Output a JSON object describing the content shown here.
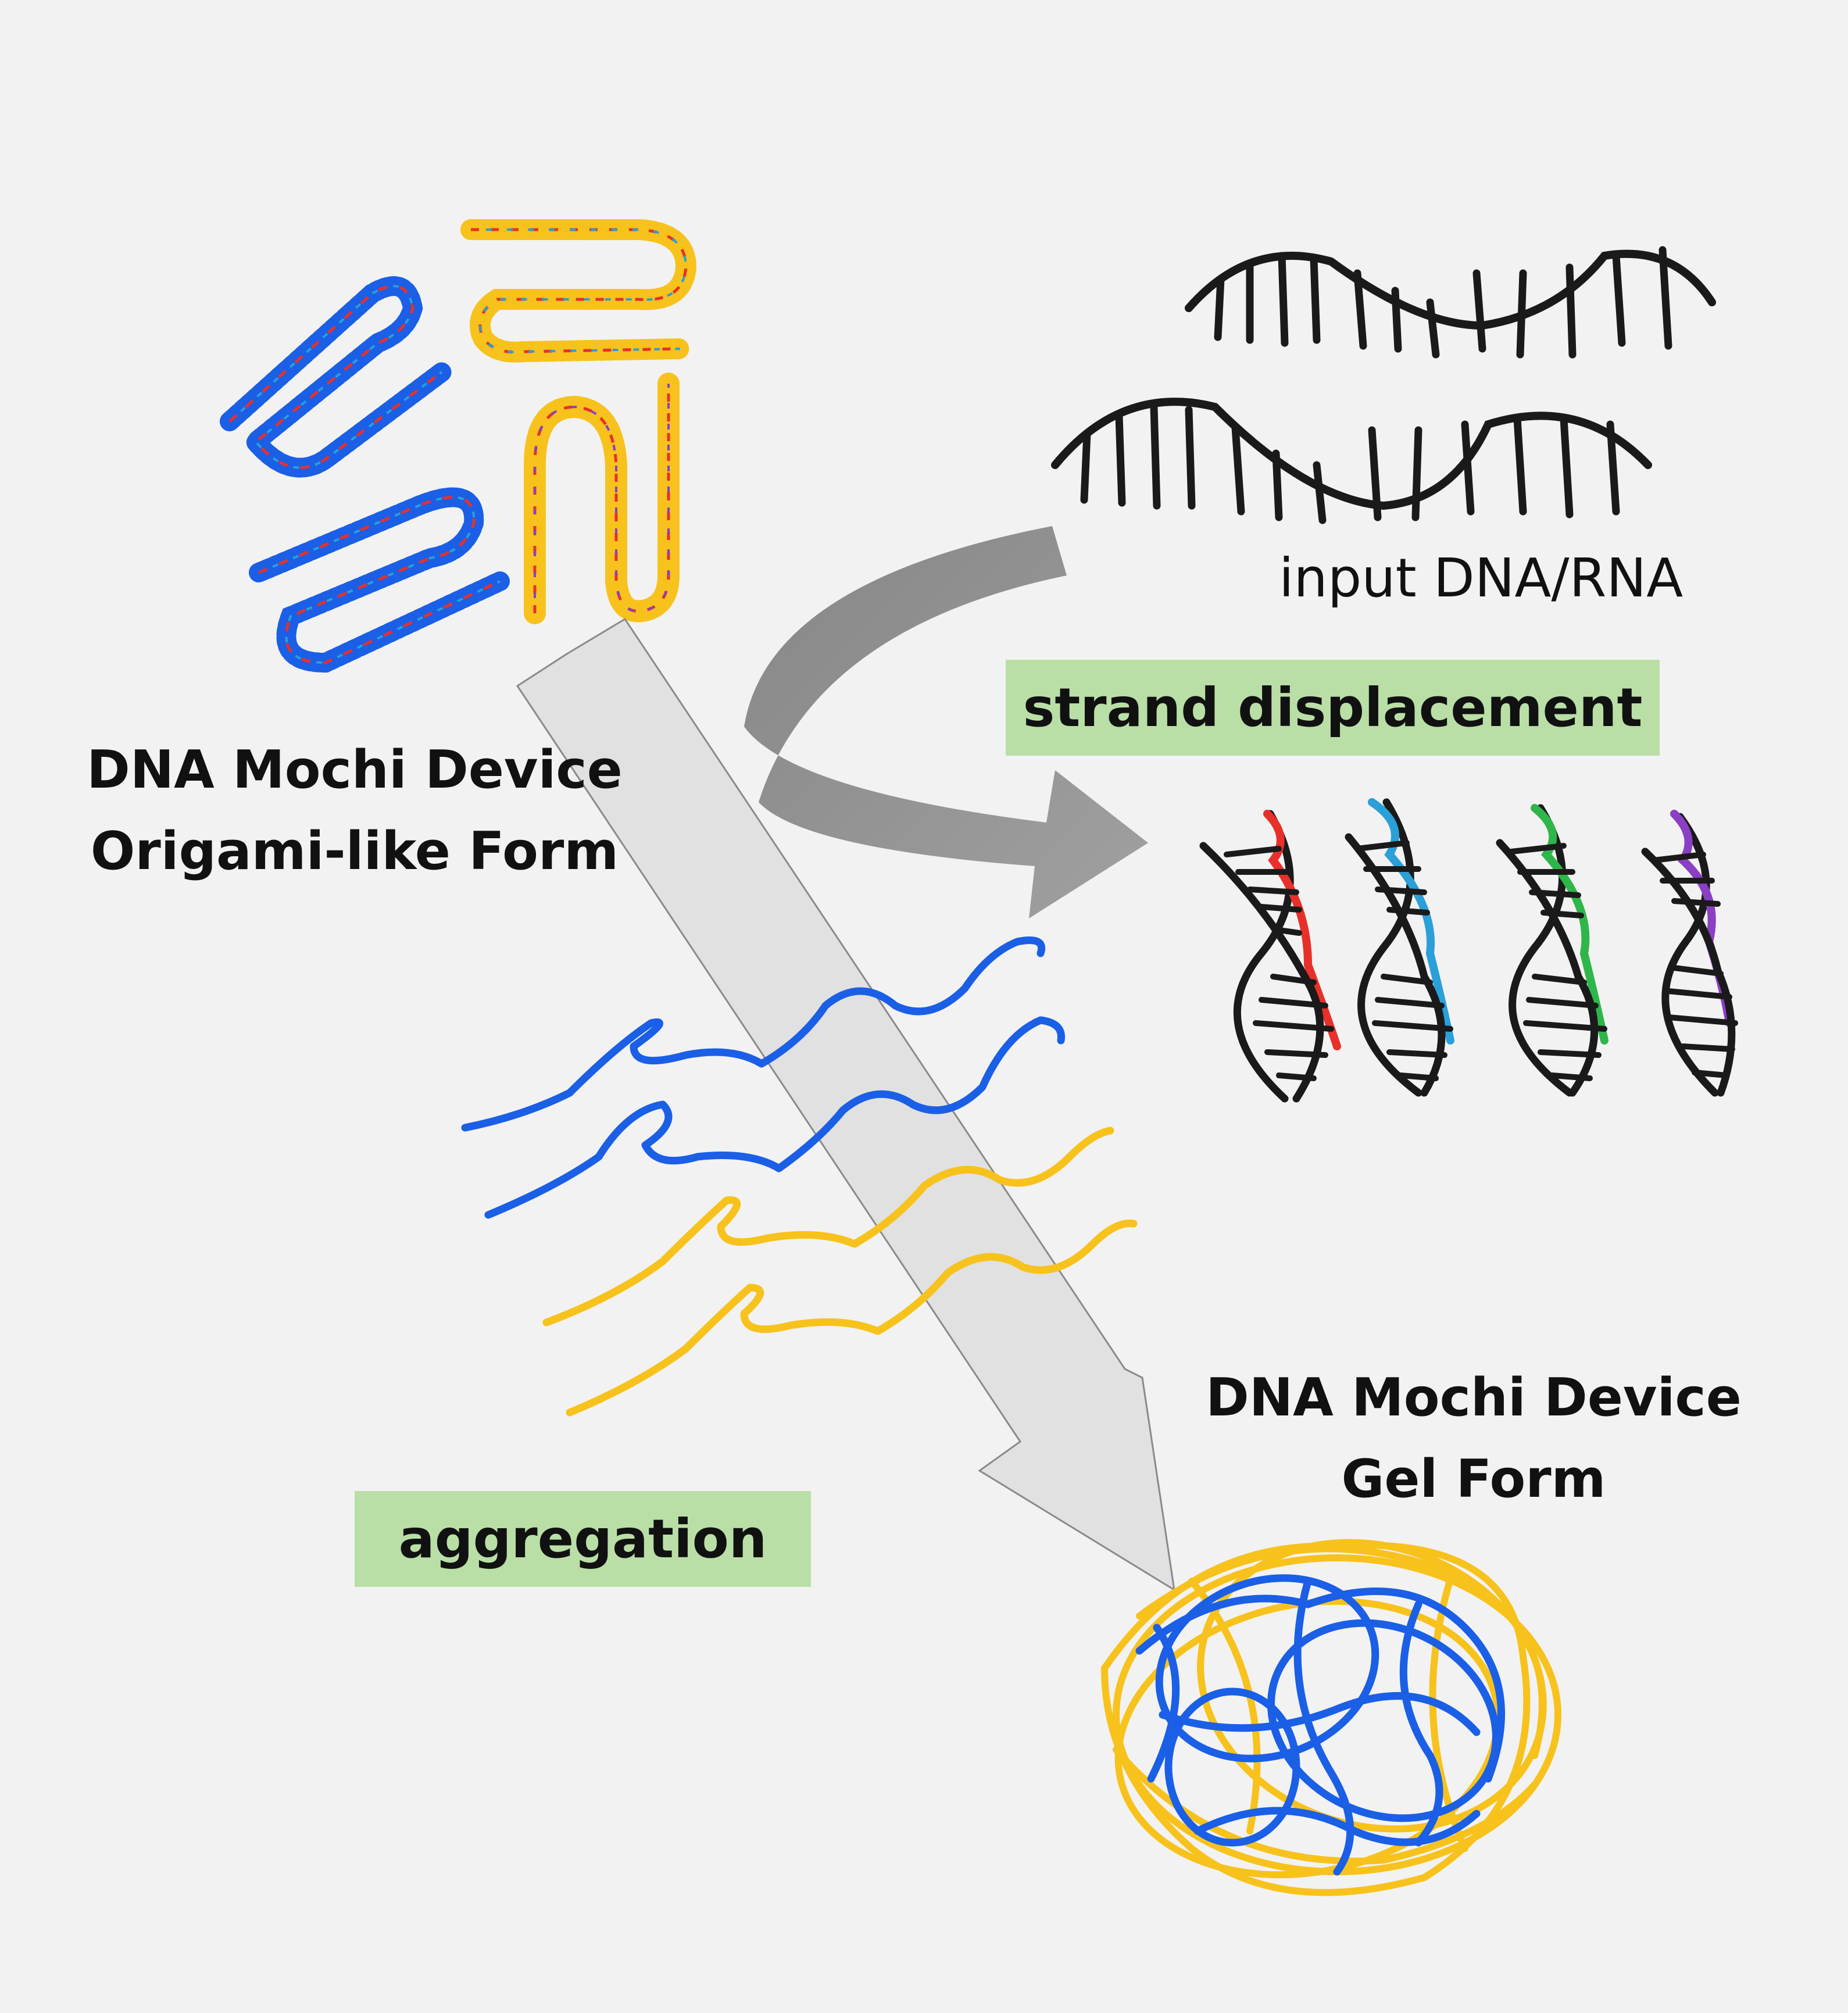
{
  "labels": {
    "origami_form": [
      "DNA Mochi Device",
      "Origami-like Form"
    ],
    "gel_form": [
      "DNA Mochi Device",
      "Gel Form"
    ],
    "input": "input DNA/RNA",
    "strand_displacement": "strand displacement",
    "aggregation": "aggregation"
  },
  "colors": {
    "background": "#f2f2f2",
    "tag_fill": "#b9dfa6",
    "blue_strand": "#1a5fe6",
    "yellow_strand": "#f7c21c",
    "curved_arrow": "#8c8c8c",
    "diagonal_arrow": "#dedede",
    "helix": "#1a1a1a",
    "released_strands": [
      "#e8302a",
      "#2b9fd8",
      "#2fb64a",
      "#8a3fc4"
    ]
  }
}
